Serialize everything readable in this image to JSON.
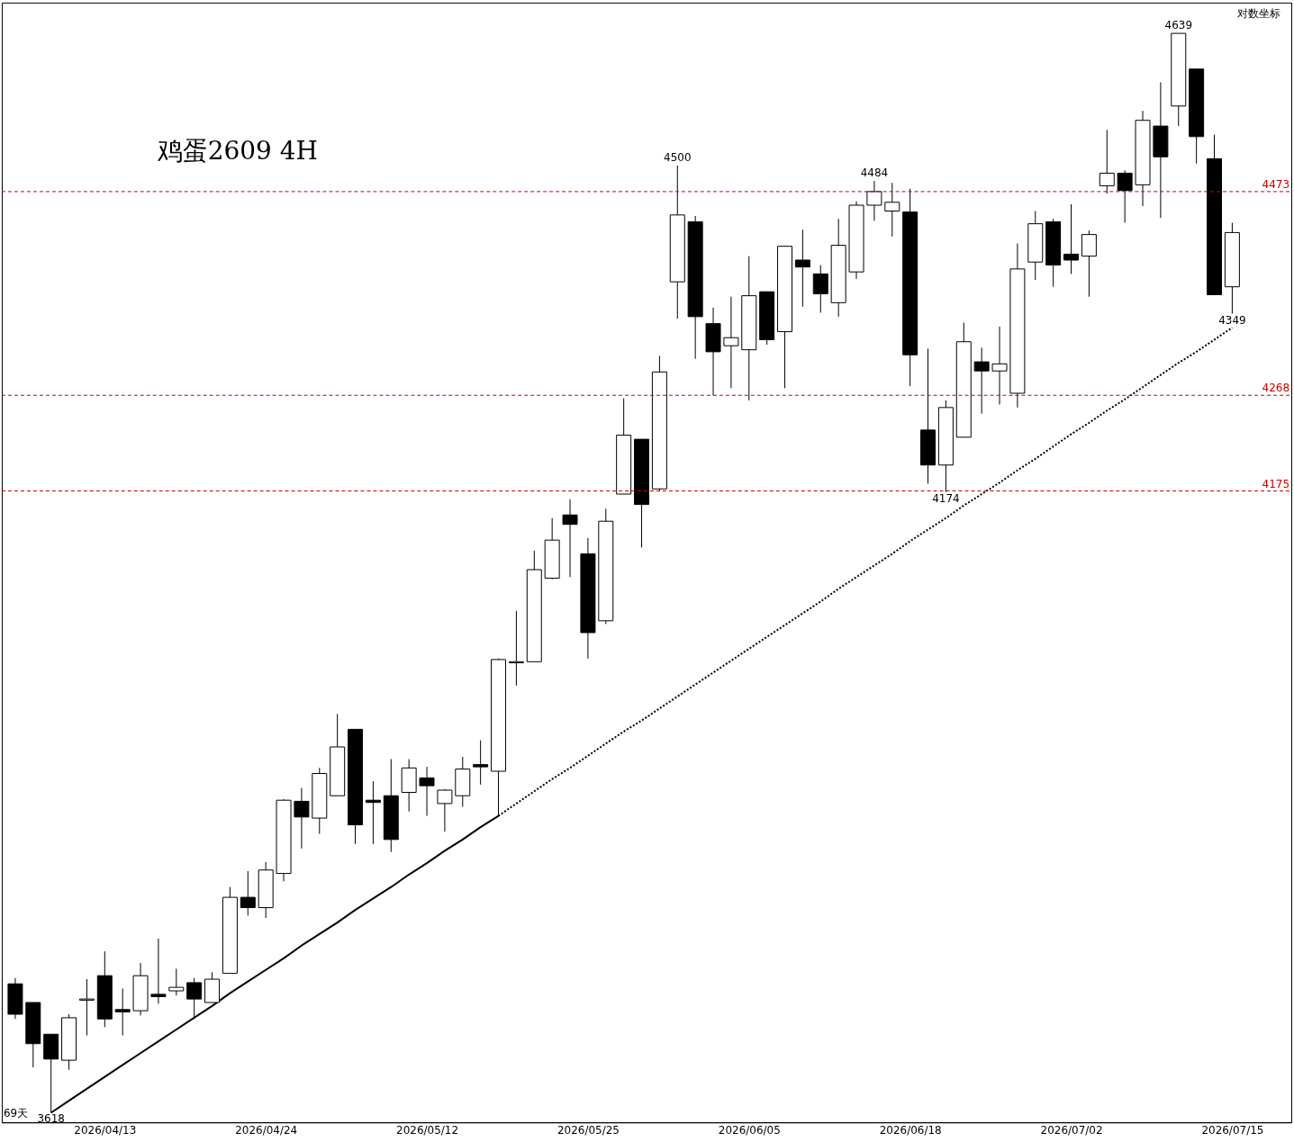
{
  "chart_data": {
    "type": "candlestick",
    "title": "鸡蛋2609 4H",
    "categories": [
      null,
      null,
      null,
      null,
      null,
      "2026/04/13",
      null,
      null,
      null,
      null,
      null,
      null,
      null,
      null,
      "2026/04/24",
      null,
      null,
      null,
      null,
      null,
      null,
      null,
      null,
      "2026/05/12",
      null,
      null,
      null,
      null,
      null,
      null,
      null,
      null,
      "2026/05/25",
      null,
      null,
      null,
      null,
      null,
      null,
      null,
      null,
      "2026/06/05",
      null,
      null,
      null,
      null,
      null,
      null,
      null,
      null,
      "2026/06/18",
      null,
      null,
      null,
      null,
      null,
      null,
      null,
      null,
      "2026/07/02",
      null,
      null,
      null,
      null,
      null,
      null,
      null,
      null,
      "2026/07/15"
    ],
    "color": "#000000",
    "ohlc": [
      [
        3727,
        3732,
        3697,
        3701
      ],
      [
        3711,
        3711,
        3656,
        3676
      ],
      [
        3684,
        3684,
        3618,
        3663
      ],
      [
        3662,
        3701,
        3654,
        3698
      ],
      [
        3713,
        3731,
        3683,
        3714
      ],
      [
        3734,
        3755,
        3690,
        3697
      ],
      [
        3705,
        3723,
        3683,
        3703
      ],
      [
        3704,
        3745,
        3700,
        3734
      ],
      [
        3718,
        3766,
        3710,
        3716
      ],
      [
        3721,
        3740,
        3717,
        3724
      ],
      [
        3728,
        3732,
        3697,
        3714
      ],
      [
        3711,
        3737,
        3711,
        3731
      ],
      [
        3736,
        3811,
        3736,
        3802
      ],
      [
        3802,
        3825,
        3786,
        3793
      ],
      [
        3793,
        3833,
        3784,
        3826
      ],
      [
        3823,
        3889,
        3816,
        3888
      ],
      [
        3887,
        3899,
        3845,
        3873
      ],
      [
        3872,
        3917,
        3858,
        3912
      ],
      [
        3892,
        3966,
        3892,
        3936
      ],
      [
        3952,
        3952,
        3849,
        3866
      ],
      [
        3888,
        3905,
        3849,
        3886
      ],
      [
        3892,
        3925,
        3842,
        3853
      ],
      [
        3895,
        3925,
        3878,
        3917
      ],
      [
        3908,
        3918,
        3874,
        3901
      ],
      [
        3885,
        3898,
        3860,
        3897
      ],
      [
        3892,
        3927,
        3882,
        3916
      ],
      [
        3920,
        3942,
        3902,
        3918
      ],
      [
        3914,
        4017,
        3874,
        4016
      ],
      [
        4013,
        4061,
        3992,
        4014
      ],
      [
        4014,
        4118,
        4014,
        4100
      ],
      [
        4092,
        4149,
        4091,
        4128
      ],
      [
        4152,
        4167,
        4093,
        4143
      ],
      [
        4115,
        4130,
        4017,
        4041
      ],
      [
        4052,
        4158,
        4049,
        4146
      ],
      [
        4172,
        4265,
        4172,
        4229
      ],
      [
        4225,
        4225,
        4121,
        4162
      ],
      [
        4177,
        4307,
        4175,
        4291
      ],
      [
        4381,
        4500,
        4344,
        4449
      ],
      [
        4442,
        4448,
        4304,
        4346
      ],
      [
        4339,
        4355,
        4268,
        4311
      ],
      [
        4317,
        4366,
        4275,
        4325
      ],
      [
        4313,
        4407,
        4263,
        4367
      ],
      [
        4371,
        4371,
        4318,
        4323
      ],
      [
        4331,
        4417,
        4275,
        4417
      ],
      [
        4403,
        4434,
        4356,
        4396
      ],
      [
        4389,
        4398,
        4350,
        4369
      ],
      [
        4360,
        4445,
        4346,
        4418
      ],
      [
        4391,
        4463,
        4384,
        4459
      ],
      [
        4459,
        4484,
        4443,
        4473
      ],
      [
        4453,
        4482,
        4427,
        4462
      ],
      [
        4452,
        4476,
        4277,
        4308
      ],
      [
        4234,
        4314,
        4182,
        4200
      ],
      [
        4200,
        4263,
        4174,
        4256
      ],
      [
        4227,
        4340,
        4227,
        4321
      ],
      [
        4301,
        4315,
        4250,
        4292
      ],
      [
        4292,
        4336,
        4259,
        4299
      ],
      [
        4270,
        4420,
        4256,
        4394
      ],
      [
        4401,
        4453,
        4383,
        4440
      ],
      [
        4442,
        4445,
        4376,
        4398
      ],
      [
        4409,
        4460,
        4389,
        4403
      ],
      [
        4407,
        4433,
        4366,
        4429
      ],
      [
        4479,
        4537,
        4471,
        4492
      ],
      [
        4492,
        4495,
        4441,
        4474
      ],
      [
        4480,
        4557,
        4458,
        4547
      ],
      [
        4541,
        4587,
        4446,
        4509
      ],
      [
        4562,
        4639,
        4541,
        4639
      ],
      [
        4601,
        4601,
        4502,
        4530
      ],
      [
        4507,
        4532,
        4368,
        4368
      ],
      [
        4376,
        4441,
        4349,
        4431
      ]
    ],
    "series": [
      {
        "type": "line",
        "color": "#000000",
        "line_style": "solid",
        "values": [
          null,
          null,
          3618,
          3628,
          3638,
          3648,
          3658,
          3668,
          3678,
          3688,
          3698,
          3708,
          3719,
          3729,
          3739,
          3749,
          3760,
          3770,
          3780,
          3791,
          3801,
          3811,
          3822,
          3832,
          3843,
          3853,
          3864,
          3874,
          null,
          null,
          null,
          null,
          null,
          null,
          null,
          null,
          null,
          null,
          null,
          null,
          null,
          null,
          null,
          null,
          null,
          null,
          null,
          null,
          null,
          null,
          null,
          null,
          null,
          null,
          null,
          null,
          null,
          null,
          null,
          null,
          null,
          null,
          null,
          null,
          null,
          null,
          null,
          null,
          null
        ]
      },
      {
        "type": "line",
        "color": "#000000",
        "line_style": "dotted",
        "values": [
          null,
          null,
          null,
          null,
          null,
          null,
          null,
          null,
          null,
          null,
          null,
          null,
          null,
          null,
          null,
          null,
          null,
          null,
          null,
          null,
          null,
          null,
          null,
          null,
          null,
          null,
          null,
          3874,
          3885,
          3896,
          3907,
          3917,
          3928,
          3939,
          3950,
          3960,
          3971,
          3982,
          3993,
          4004,
          4015,
          4026,
          4037,
          4048,
          4059,
          4070,
          4082,
          4093,
          4104,
          4115,
          4127,
          4138,
          4149,
          4161,
          4172,
          4183,
          4195,
          4206,
          4218,
          4230,
          4241,
          4253,
          4264,
          4276,
          4288,
          4300,
          4311,
          4323,
          4335
        ]
      }
    ],
    "ylim": [
      3610,
      4672
    ],
    "log": true,
    "tick_labels": "x",
    "ref_lines": [
      {
        "axis": "y",
        "value": 4473,
        "label": "4473",
        "color": "#cc0000",
        "line_style": "dashed"
      },
      {
        "axis": "y",
        "value": 4268,
        "label": "4268",
        "color": "#cc0000",
        "line_style": "dashed"
      },
      {
        "axis": "y",
        "value": 4175,
        "label": "4175",
        "color": "#cc0000",
        "line_style": "dashed"
      }
    ],
    "annotations": [
      {
        "text": "4639",
        "y": 4639
      },
      {
        "text": "4500",
        "y": 4500
      },
      {
        "text": "4484",
        "y": 4484
      },
      {
        "text": "4174",
        "y": 4174
      },
      {
        "text": "4349",
        "y": 4349
      },
      {
        "text": "3618",
        "y": 3618
      },
      "对数坐标",
      "69天"
    ]
  }
}
